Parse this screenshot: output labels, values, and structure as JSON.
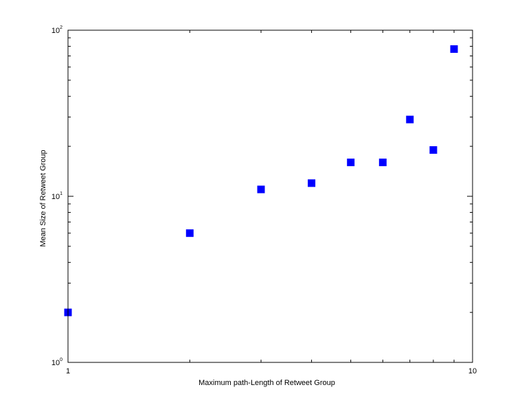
{
  "colors": {
    "background": "#ffffff",
    "axes": "#000000",
    "marker": "#0000ff"
  },
  "chart_data": {
    "type": "scatter",
    "title": "",
    "xlabel": "Maximum path-Length of Retweet Group",
    "ylabel": "Mean Size of Retweet Group",
    "xscale": "log",
    "yscale": "log",
    "xlim": [
      1,
      10
    ],
    "ylim": [
      1,
      100
    ],
    "grid": false,
    "legend": "none",
    "marker": "square",
    "x_ticks": [
      {
        "value": 1,
        "base": "1",
        "exp": ""
      },
      {
        "value": 10,
        "base": "10",
        "exp": ""
      }
    ],
    "y_ticks": [
      {
        "value": 1,
        "base": "10",
        "exp": "0"
      },
      {
        "value": 10,
        "base": "10",
        "exp": "1"
      },
      {
        "value": 100,
        "base": "10",
        "exp": "2"
      }
    ],
    "series": [
      {
        "x": [
          1,
          2,
          3,
          4,
          5,
          6,
          7,
          8,
          9
        ],
        "y": [
          2,
          6,
          11,
          12,
          16,
          16,
          29,
          19,
          77
        ]
      }
    ]
  }
}
